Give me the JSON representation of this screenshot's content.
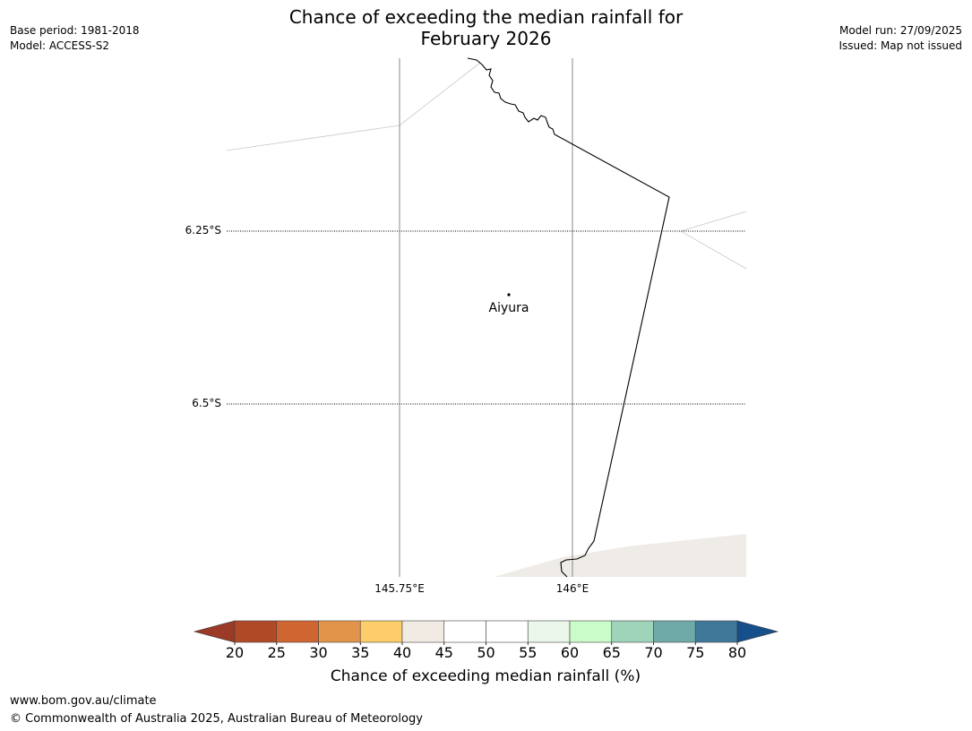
{
  "header": {
    "title_line1": "Chance of exceeding the median rainfall for",
    "title_line2": "February 2026",
    "base_period": "Base period: 1981-2018",
    "model": "Model: ACCESS-S2",
    "model_run": "Model run: 27/09/2025",
    "issued": "Issued: Map not issued"
  },
  "map": {
    "place_name": "Aiyura",
    "lat_labels": [
      "6.25°S",
      "6.5°S"
    ],
    "lon_labels": [
      "145.75°E",
      "146°E"
    ]
  },
  "colorbar": {
    "title": "Chance of exceeding median rainfall (%)",
    "ticks": [
      "20",
      "25",
      "30",
      "35",
      "40",
      "45",
      "50",
      "55",
      "60",
      "65",
      "70",
      "75",
      "80"
    ],
    "under_color": "#9b3a26",
    "over_color": "#174f8a",
    "colors": [
      "#b04a26",
      "#cf6530",
      "#e2944a",
      "#fdcd69",
      "#f1ebe4",
      "#ffffff",
      "#ffffff",
      "#eaf7ea",
      "#c9fcc9",
      "#9fd3ba",
      "#6fa9a8",
      "#40789a"
    ]
  },
  "footer": {
    "url": "www.bom.gov.au/climate",
    "copyright": "© Commonwealth of Australia 2025, Australian Bureau of Meteorology"
  }
}
